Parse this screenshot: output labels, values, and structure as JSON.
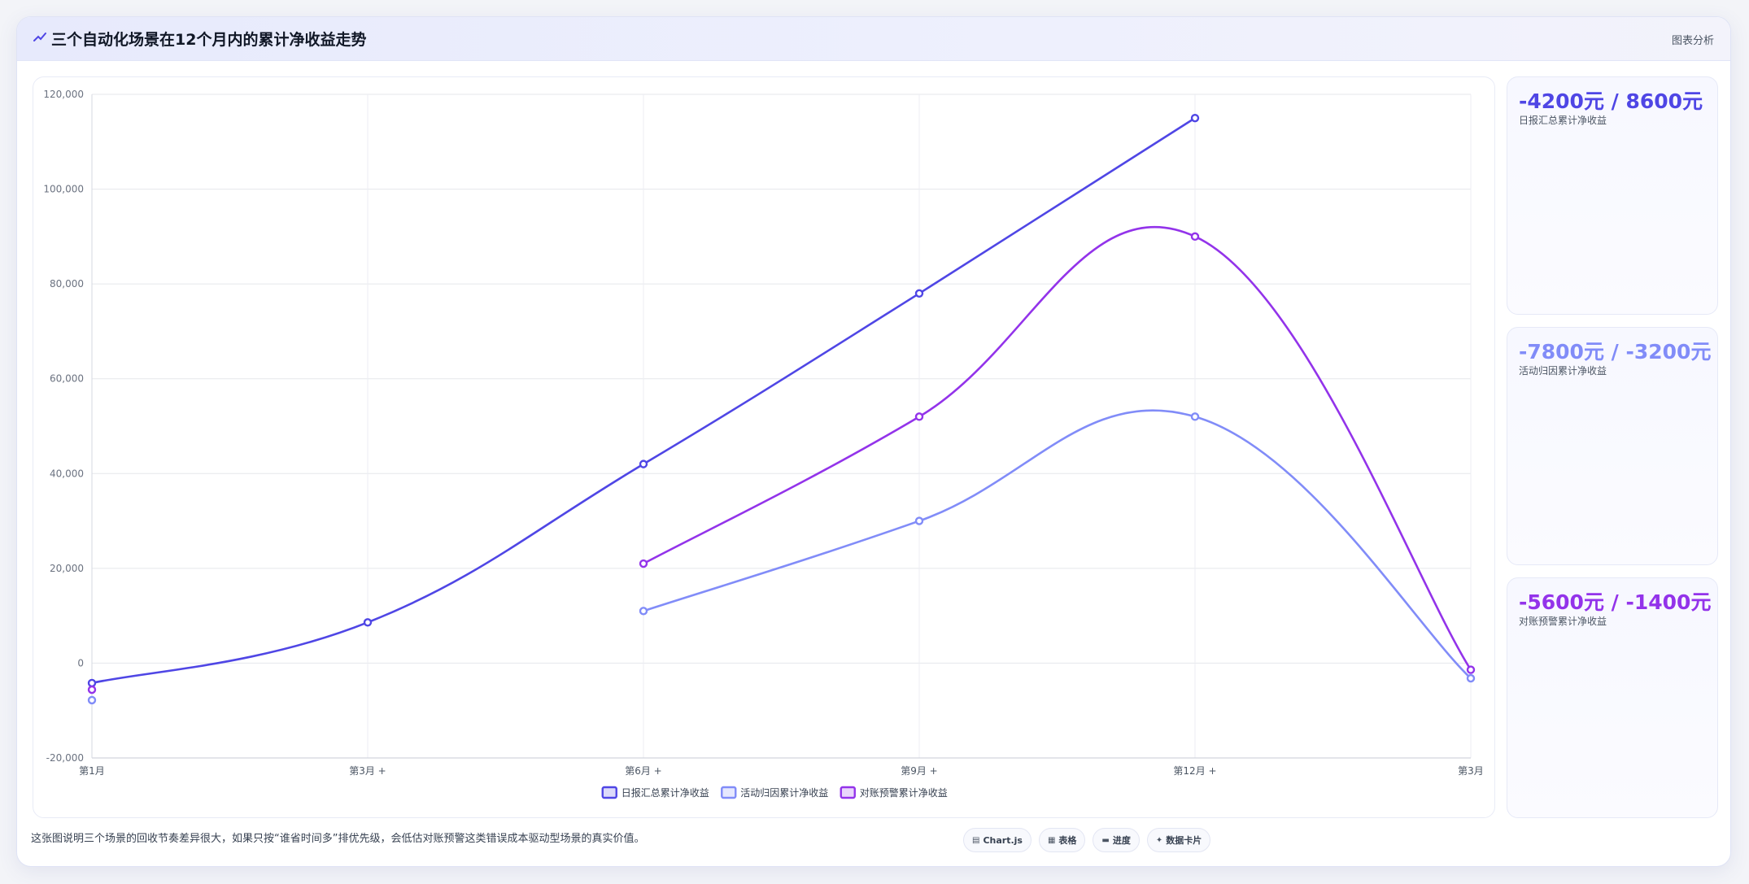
{
  "header": {
    "title": "三个自动化场景在12个月内的累计净收益走势",
    "title_icon": "chart-trend-icon",
    "right_label": "图表分析"
  },
  "kpis": [
    {
      "value": "-4200元 / 8600元",
      "label": "日报汇总累计净收益",
      "color": "#4f46e5"
    },
    {
      "value": "-7800元 / -3200元",
      "label": "活动归因累计净收益",
      "color": "#818cf8"
    },
    {
      "value": "-5600元 / -1400元",
      "label": "对账预警累计净收益",
      "color": "#9333ea"
    }
  ],
  "footer": {
    "note": "这张图说明三个场景的回收节奏差异很大，如果只按“谁省时间多”排优先级，会低估对账预警这类错误成本驱动型场景的真实价值。",
    "chips": [
      {
        "icon": "chart-icon",
        "label": "Chart.js"
      },
      {
        "icon": "table-icon",
        "label": "表格"
      },
      {
        "icon": "progress-icon",
        "label": "进度"
      },
      {
        "icon": "sparkle-icon",
        "label": "数据卡片"
      }
    ]
  },
  "chart_data": {
    "type": "line",
    "categories": [
      "第1月",
      "第3月 +",
      "第6月 +",
      "第9月 +",
      "第12月 +",
      "第3月"
    ],
    "ylim": [
      -20000,
      120000
    ],
    "yticks": [
      -20000,
      0,
      20000,
      40000,
      60000,
      80000,
      100000,
      120000
    ],
    "ytick_labels": [
      "-20,000",
      "0",
      "20,000",
      "40,000",
      "60,000",
      "80,000",
      "100,000",
      "120,000"
    ],
    "grid": true,
    "legend_position": "bottom",
    "series": [
      {
        "name": "日报汇总累计净收益",
        "color": "#4f46e5",
        "values": [
          -4200,
          8600,
          42000,
          78000,
          115000,
          null
        ]
      },
      {
        "name": "活动归因累计净收益",
        "color": "#818cf8",
        "values": [
          -7800,
          null,
          11000,
          30000,
          52000,
          -3200
        ]
      },
      {
        "name": "对账预警累计净收益",
        "color": "#9333ea",
        "values": [
          -5600,
          null,
          21000,
          52000,
          90000,
          -1400
        ]
      }
    ]
  }
}
